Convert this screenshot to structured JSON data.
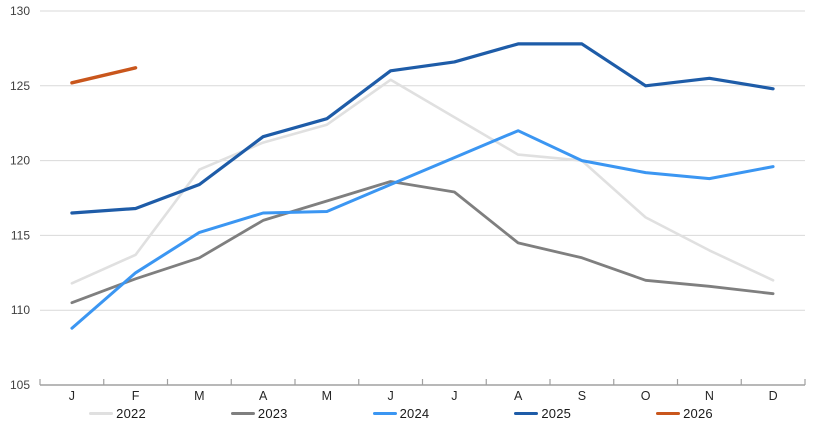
{
  "chart_data": {
    "type": "line",
    "title": "",
    "categories": [
      "J",
      "F",
      "M",
      "A",
      "M",
      "J",
      "J",
      "A",
      "S",
      "O",
      "N",
      "D"
    ],
    "x_axis": {
      "label": "",
      "tick_style": "between-categories"
    },
    "y_axis": {
      "label": "",
      "min": 105,
      "max": 130,
      "tick_interval": 5,
      "tick_labels": [
        "105",
        "110",
        "115",
        "120",
        "125",
        "130"
      ]
    },
    "grid": "horizontal",
    "legend_position": "bottom",
    "series": [
      {
        "name": "2022",
        "color": "#e0e0e0",
        "stroke_width": 2.6,
        "values": [
          111.8,
          113.7,
          119.4,
          121.2,
          122.4,
          125.4,
          122.9,
          120.4,
          120.0,
          116.2,
          114.0,
          112.0
        ]
      },
      {
        "name": "2023",
        "color": "#7f7f7f",
        "stroke_width": 2.8,
        "values": [
          110.5,
          112.1,
          113.5,
          116.0,
          117.3,
          118.6,
          117.9,
          114.5,
          113.5,
          112.0,
          111.6,
          111.1
        ]
      },
      {
        "name": "2024",
        "color": "#3b96f2",
        "stroke_width": 3.0,
        "values": [
          108.8,
          112.5,
          115.2,
          116.5,
          116.6,
          118.4,
          120.2,
          122.0,
          120.0,
          119.2,
          118.8,
          119.6
        ]
      },
      {
        "name": "2025",
        "color": "#1e5ca8",
        "stroke_width": 3.2,
        "values": [
          116.5,
          116.8,
          118.4,
          121.6,
          122.8,
          126.0,
          126.6,
          127.8,
          127.8,
          125.0,
          125.5,
          124.8
        ]
      },
      {
        "name": "2026",
        "color": "#c9561c",
        "stroke_width": 3.4,
        "values": [
          125.2,
          126.2,
          null,
          null,
          null,
          null,
          null,
          null,
          null,
          null,
          null,
          null
        ]
      }
    ],
    "style": {
      "gridline_color": "#d9d9d9",
      "axis_color": "#a0a0a0",
      "tick_label_color": "#404040",
      "month_label_color": "#262626"
    }
  }
}
